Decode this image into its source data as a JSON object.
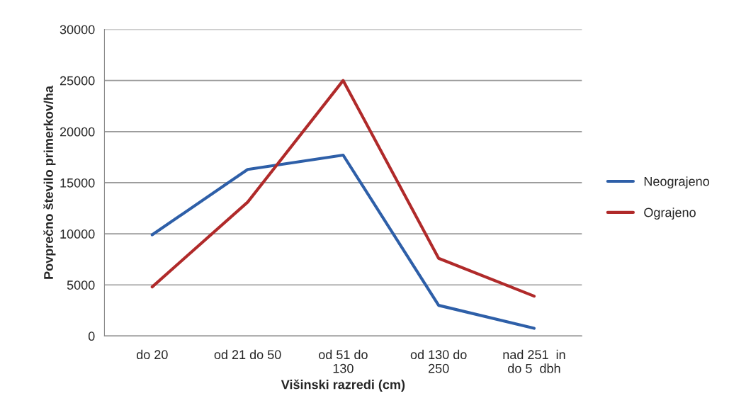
{
  "chart_data": {
    "type": "line",
    "xlabel": "Višinski razredi (cm)",
    "ylabel": "Povprečno število primerkov/ha",
    "categories": [
      "do 20",
      "od 21 do 50",
      "od 51 do\n130",
      "od 130 do\n250",
      "nad 251  in\ndo 5  dbh"
    ],
    "series": [
      {
        "name": "Neograjeno",
        "color": "#2e5fa8",
        "values": [
          9900,
          16300,
          17700,
          3000,
          750
        ]
      },
      {
        "name": "Ograjeno",
        "color": "#b02a2a",
        "values": [
          4800,
          13100,
          25000,
          7600,
          3900
        ]
      }
    ],
    "ylim": [
      0,
      30000
    ],
    "yticks": [
      0,
      5000,
      10000,
      15000,
      20000,
      25000,
      30000
    ],
    "grid": "y",
    "legend": "right",
    "marker": "none",
    "line_style": "solid"
  }
}
